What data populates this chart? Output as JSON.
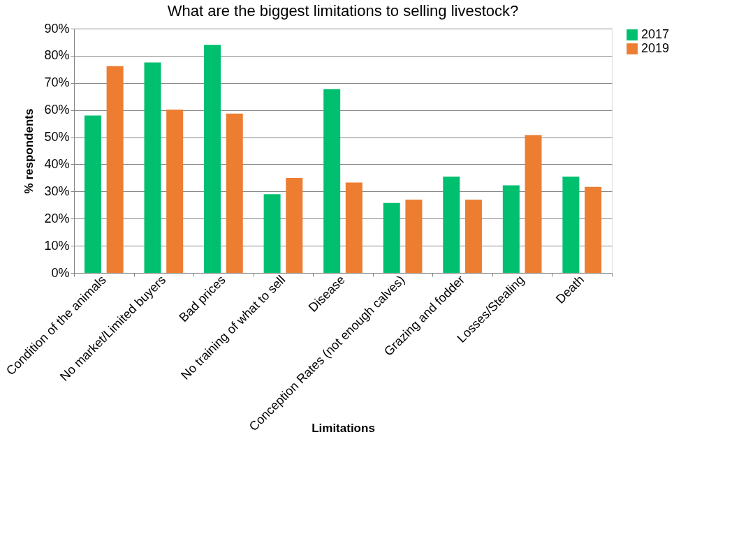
{
  "chart_data": {
    "type": "bar",
    "title": "What are the biggest limitations to selling livestock?",
    "xlabel": "Limitations",
    "ylabel": "% respondents",
    "categories": [
      "Condition of the animals",
      "No market/Limited buyers",
      "Bad prices",
      "No training of what to sell",
      "Disease",
      "Conception Rates (not enough calves)",
      "Grazing and fodder",
      "Losses/Stealing",
      "Death"
    ],
    "series": [
      {
        "name": "2017",
        "color": "#00c070",
        "values": [
          58,
          77.5,
          84,
          29,
          67.7,
          25.8,
          35.5,
          32.3,
          35.5
        ]
      },
      {
        "name": "2019",
        "color": "#ed7d31",
        "values": [
          76.2,
          60.2,
          58.7,
          35,
          33.3,
          27,
          27,
          50.8,
          31.7
        ]
      }
    ],
    "ylim": [
      0,
      90
    ],
    "yticks": [
      {
        "value": 0,
        "label": "0%"
      },
      {
        "value": 10,
        "label": "10%"
      },
      {
        "value": 20,
        "label": "20%"
      },
      {
        "value": 30,
        "label": "30%"
      },
      {
        "value": 40,
        "label": "40%"
      },
      {
        "value": 50,
        "label": "50%"
      },
      {
        "value": 60,
        "label": "60%"
      },
      {
        "value": 70,
        "label": "70%"
      },
      {
        "value": 80,
        "label": "80%"
      },
      {
        "value": 90,
        "label": "90%"
      }
    ],
    "grid": "y",
    "legend": "right"
  }
}
